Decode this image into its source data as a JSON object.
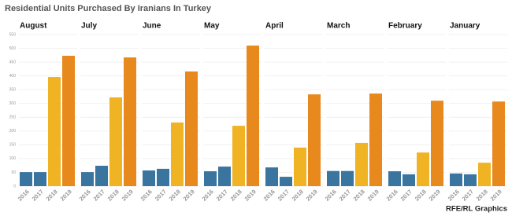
{
  "title": "Residential Units Purchased By Iranians In Turkey",
  "credit": "RFE/RL Graphics",
  "chart_data": [
    {
      "type": "bar",
      "title": "August",
      "categories": [
        "2016",
        "2017",
        "2018",
        "2019"
      ],
      "values": [
        51,
        51,
        396,
        473
      ],
      "colors": [
        "#3a75a0",
        "#3a75a0",
        "#f0b323",
        "#e8891e"
      ],
      "ylim": [
        0,
        550
      ],
      "yticks": [
        0,
        50,
        100,
        150,
        200,
        250,
        300,
        350,
        400,
        450,
        500,
        550
      ],
      "grid": true
    },
    {
      "type": "bar",
      "title": "July",
      "categories": [
        "2016",
        "2017",
        "2018",
        "2019"
      ],
      "values": [
        51,
        74,
        322,
        467
      ],
      "colors": [
        "#3a75a0",
        "#3a75a0",
        "#f0b323",
        "#e8891e"
      ],
      "ylim": [
        0,
        550
      ],
      "yticks": [
        0,
        50,
        100,
        150,
        200,
        250,
        300,
        350,
        400,
        450,
        500,
        550
      ],
      "grid": true
    },
    {
      "type": "bar",
      "title": "June",
      "categories": [
        "2016",
        "2017",
        "2018",
        "2019"
      ],
      "values": [
        57,
        63,
        231,
        416
      ],
      "colors": [
        "#3a75a0",
        "#3a75a0",
        "#f0b323",
        "#e8891e"
      ],
      "ylim": [
        0,
        550
      ],
      "yticks": [
        0,
        50,
        100,
        150,
        200,
        250,
        300,
        350,
        400,
        450,
        500,
        550
      ],
      "grid": true
    },
    {
      "type": "bar",
      "title": "May",
      "categories": [
        "2016",
        "2017",
        "2018",
        "2019"
      ],
      "values": [
        54,
        71,
        219,
        510
      ],
      "colors": [
        "#3a75a0",
        "#3a75a0",
        "#f0b323",
        "#e8891e"
      ],
      "ylim": [
        0,
        550
      ],
      "yticks": [
        0,
        50,
        100,
        150,
        200,
        250,
        300,
        350,
        400,
        450,
        500,
        550
      ],
      "grid": true
    },
    {
      "type": "bar",
      "title": "April",
      "categories": [
        "2016",
        "2017",
        "2018",
        "2019"
      ],
      "values": [
        68,
        34,
        140,
        333
      ],
      "colors": [
        "#3a75a0",
        "#3a75a0",
        "#f0b323",
        "#e8891e"
      ],
      "ylim": [
        0,
        550
      ],
      "yticks": [
        0,
        50,
        100,
        150,
        200,
        250,
        300,
        350,
        400,
        450,
        500,
        550
      ],
      "grid": true
    },
    {
      "type": "bar",
      "title": "March",
      "categories": [
        "2016",
        "2017",
        "2018",
        "2019"
      ],
      "values": [
        55,
        55,
        157,
        336
      ],
      "colors": [
        "#3a75a0",
        "#3a75a0",
        "#f0b323",
        "#e8891e"
      ],
      "ylim": [
        0,
        550
      ],
      "yticks": [
        0,
        50,
        100,
        150,
        200,
        250,
        300,
        350,
        400,
        450,
        500,
        550
      ],
      "grid": true
    },
    {
      "type": "bar",
      "title": "February",
      "categories": [
        "2016",
        "2017",
        "2018",
        "2019"
      ],
      "values": [
        54,
        43,
        122,
        310
      ],
      "colors": [
        "#3a75a0",
        "#3a75a0",
        "#f0b323",
        "#e8891e"
      ],
      "ylim": [
        0,
        550
      ],
      "yticks": [
        0,
        50,
        100,
        150,
        200,
        250,
        300,
        350,
        400,
        450,
        500,
        550
      ],
      "grid": true
    },
    {
      "type": "bar",
      "title": "January",
      "categories": [
        "2016",
        "2017",
        "2018",
        "2019"
      ],
      "values": [
        46,
        43,
        85,
        307
      ],
      "colors": [
        "#3a75a0",
        "#3a75a0",
        "#f0b323",
        "#e8891e"
      ],
      "ylim": [
        0,
        550
      ],
      "yticks": [
        0,
        50,
        100,
        150,
        200,
        250,
        300,
        350,
        400,
        450,
        500,
        550
      ],
      "grid": true
    }
  ]
}
